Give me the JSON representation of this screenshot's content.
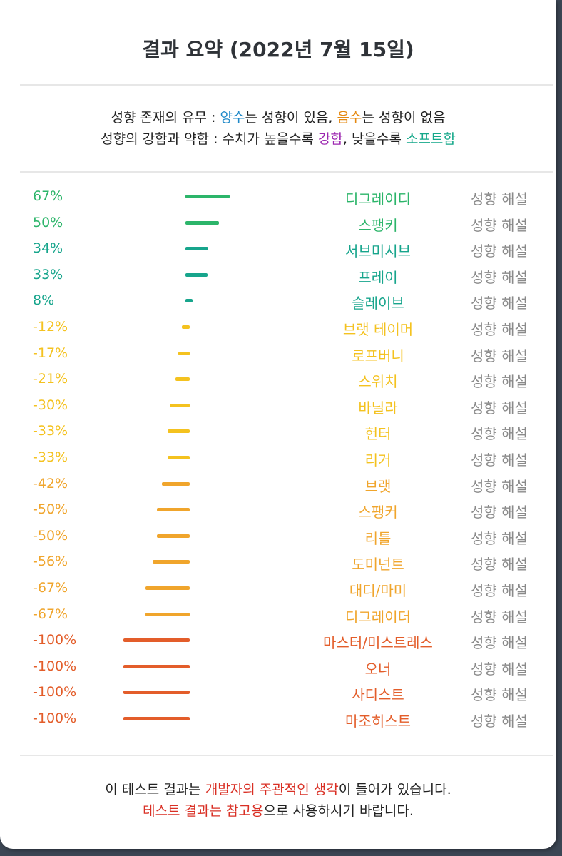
{
  "title": "결과 요약 (2022년 7월 15일)",
  "legend": {
    "line1": {
      "prefix": "성향 존재의 유무 : ",
      "positive": "양수",
      "mid": "는 성향이 있음, ",
      "negative": "음수",
      "suffix": "는 성향이 없음"
    },
    "line2": {
      "prefix": "성향의 강함과 약함 : 수치가 높을수록 ",
      "strong": "강함",
      "mid": ", 낮을수록 ",
      "soft": "소프트함"
    }
  },
  "explain_label": "성향 해설",
  "colors": {
    "green_strong": "#2cb56a",
    "green_teal": "#17a58c",
    "yellow": "#f4c21f",
    "orange": "#f0a52c",
    "red": "#e35d2a"
  },
  "chart_data": {
    "type": "bar",
    "orientation": "horizontal-diverging",
    "categories": [
      "디그레이디",
      "스팽키",
      "서브미시브",
      "프레이",
      "슬레이브",
      "브랫 테이머",
      "로프버니",
      "스위치",
      "바닐라",
      "헌터",
      "리거",
      "브랫",
      "스팽커",
      "리틀",
      "도미넌트",
      "대디/마미",
      "디그레이더",
      "마스터/미스트레스",
      "오너",
      "사디스트",
      "마조히스트"
    ],
    "values": [
      67,
      50,
      34,
      33,
      8,
      -12,
      -17,
      -21,
      -30,
      -33,
      -33,
      -42,
      -50,
      -50,
      -56,
      -67,
      -67,
      -100,
      -100,
      -100,
      -100
    ],
    "value_labels": [
      "67%",
      "50%",
      "34%",
      "33%",
      "8%",
      "-12%",
      "-17%",
      "-21%",
      "-30%",
      "-33%",
      "-33%",
      "-42%",
      "-50%",
      "-50%",
      "-56%",
      "-67%",
      "-67%",
      "-100%",
      "-100%",
      "-100%",
      "-100%"
    ],
    "xlim": [
      -100,
      100
    ]
  },
  "footer": {
    "line1": {
      "prefix": "이 테스트 결과는 ",
      "highlight": "개발자의 주관적인 생각",
      "suffix": "이 들어가 있습니다."
    },
    "line2": {
      "highlight": "테스트 결과는 참고용",
      "suffix": "으로 사용하시기 바랍니다."
    }
  }
}
